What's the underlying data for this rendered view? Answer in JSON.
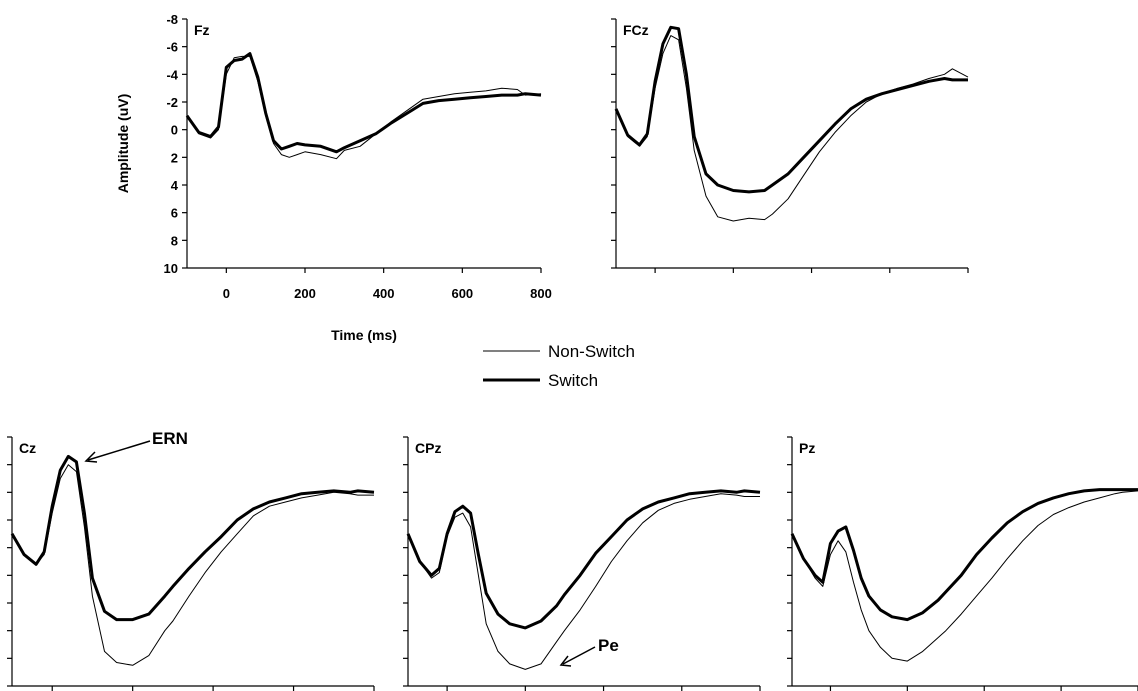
{
  "chart_data": [
    {
      "type": "line",
      "panel": "Fz",
      "xlabel": "Time (ms)",
      "ylabel": "Amplitude (uV)",
      "xlim": [
        -100,
        800
      ],
      "ylim": [
        10,
        -8
      ],
      "y_axis_inverted": true,
      "xticks": [
        0,
        200,
        400,
        600,
        800
      ],
      "yticks": [
        -8,
        -6,
        -4,
        -2,
        0,
        2,
        4,
        6,
        8,
        10
      ],
      "series": [
        {
          "name": "Non-Switch",
          "x": [
            -100,
            -70,
            -40,
            -20,
            0,
            20,
            40,
            60,
            80,
            100,
            120,
            140,
            160,
            180,
            200,
            240,
            280,
            300,
            340,
            380,
            420,
            460,
            500,
            540,
            580,
            620,
            660,
            700,
            740,
            760,
            800
          ],
          "y": [
            -1,
            0.3,
            0.6,
            0,
            -4,
            -5.2,
            -5.3,
            -5.3,
            -3.5,
            -1,
            1,
            1.8,
            2,
            1.8,
            1.6,
            1.8,
            2.1,
            1.5,
            1.2,
            0.3,
            -0.6,
            -1.4,
            -2.2,
            -2.4,
            -2.6,
            -2.7,
            -2.8,
            -3.0,
            -2.9,
            -2.5,
            -2.6
          ]
        },
        {
          "name": "Switch",
          "x": [
            -100,
            -70,
            -40,
            -20,
            0,
            20,
            40,
            60,
            80,
            100,
            120,
            140,
            160,
            180,
            200,
            240,
            280,
            300,
            340,
            380,
            420,
            460,
            500,
            540,
            580,
            620,
            660,
            700,
            740,
            760,
            800
          ],
          "y": [
            -1,
            0.2,
            0.5,
            -0.2,
            -4.5,
            -5,
            -5.1,
            -5.5,
            -3.8,
            -1.2,
            0.8,
            1.4,
            1.2,
            1.0,
            1.1,
            1.2,
            1.6,
            1.3,
            0.8,
            0.3,
            -0.5,
            -1.2,
            -1.9,
            -2.1,
            -2.2,
            -2.3,
            -2.4,
            -2.5,
            -2.5,
            -2.6,
            -2.5
          ]
        }
      ]
    },
    {
      "type": "line",
      "panel": "FCz",
      "xlim": [
        -100,
        800
      ],
      "ylim": [
        10,
        -8
      ],
      "y_axis_inverted": true,
      "series": [
        {
          "name": "Non-Switch",
          "x": [
            -100,
            -70,
            -40,
            -20,
            0,
            20,
            40,
            60,
            80,
            100,
            130,
            160,
            200,
            240,
            280,
            300,
            340,
            380,
            420,
            460,
            500,
            540,
            580,
            620,
            660,
            700,
            740,
            760,
            800
          ],
          "y": [
            -1.5,
            0.5,
            1.2,
            0.5,
            -3,
            -5.5,
            -6.8,
            -6.5,
            -3,
            1.5,
            4.8,
            6.3,
            6.6,
            6.4,
            6.5,
            6.1,
            5,
            3.3,
            1.6,
            0.2,
            -1,
            -2,
            -2.6,
            -3,
            -3.3,
            -3.7,
            -4.0,
            -4.4,
            -3.8
          ]
        },
        {
          "name": "Switch",
          "x": [
            -100,
            -70,
            -40,
            -20,
            0,
            20,
            40,
            60,
            80,
            100,
            130,
            160,
            200,
            240,
            280,
            300,
            340,
            380,
            420,
            460,
            500,
            540,
            580,
            620,
            660,
            700,
            740,
            760,
            800
          ],
          "y": [
            -1.5,
            0.4,
            1.1,
            0.3,
            -3.5,
            -6.2,
            -7.4,
            -7.3,
            -4,
            0.5,
            3.2,
            4.0,
            4.4,
            4.5,
            4.4,
            4.0,
            3.2,
            2.0,
            0.8,
            -0.4,
            -1.5,
            -2.2,
            -2.6,
            -2.9,
            -3.2,
            -3.5,
            -3.7,
            -3.6,
            -3.6
          ]
        }
      ]
    },
    {
      "type": "line",
      "panel": "Cz",
      "series": [
        {
          "name": "Non-Switch",
          "x": [
            -100,
            -70,
            -40,
            -20,
            0,
            20,
            40,
            60,
            80,
            100,
            130,
            160,
            200,
            240,
            280,
            300,
            340,
            380,
            420,
            460,
            500,
            540,
            580,
            620,
            660,
            700,
            740,
            760,
            800
          ],
          "y": [
            -1,
            0.5,
            1.2,
            0.5,
            -2.5,
            -5,
            -6.0,
            -5.5,
            -1.5,
            3.5,
            7.5,
            8.3,
            8.5,
            7.8,
            6.0,
            5.3,
            3.5,
            1.8,
            0.3,
            -1,
            -2.3,
            -3,
            -3.3,
            -3.6,
            -3.8,
            -4.0,
            -3.9,
            -3.8,
            -3.8
          ]
        },
        {
          "name": "Switch",
          "x": [
            -100,
            -70,
            -40,
            -20,
            0,
            20,
            40,
            60,
            80,
            100,
            130,
            160,
            200,
            240,
            280,
            300,
            340,
            380,
            420,
            460,
            500,
            540,
            580,
            620,
            660,
            700,
            740,
            760,
            800
          ],
          "y": [
            -1,
            0.5,
            1.2,
            0.3,
            -3,
            -5.6,
            -6.6,
            -6.2,
            -2.5,
            2.2,
            4.6,
            5.2,
            5.2,
            4.8,
            3.5,
            2.8,
            1.5,
            0.3,
            -0.8,
            -2,
            -2.8,
            -3.3,
            -3.6,
            -3.9,
            -4.0,
            -4.1,
            -4.0,
            -4.1,
            -4.0
          ]
        }
      ]
    },
    {
      "type": "line",
      "panel": "CPz",
      "series": [
        {
          "name": "Non-Switch",
          "x": [
            -100,
            -70,
            -40,
            -20,
            0,
            20,
            40,
            60,
            80,
            100,
            130,
            160,
            200,
            240,
            280,
            300,
            340,
            380,
            420,
            460,
            500,
            540,
            580,
            620,
            660,
            700,
            740,
            760,
            800
          ],
          "y": [
            -1,
            1,
            2.2,
            1.8,
            -0.8,
            -2.2,
            -2.5,
            -1.5,
            2,
            5.5,
            7.5,
            8.4,
            8.8,
            8.4,
            6.8,
            6.0,
            4.5,
            2.8,
            1.0,
            -0.5,
            -1.8,
            -2.7,
            -3.2,
            -3.5,
            -3.7,
            -3.9,
            -3.8,
            -3.7,
            -3.7
          ]
        },
        {
          "name": "Switch",
          "x": [
            -100,
            -70,
            -40,
            -20,
            0,
            20,
            40,
            60,
            80,
            100,
            130,
            160,
            200,
            240,
            280,
            300,
            340,
            380,
            420,
            460,
            500,
            540,
            580,
            620,
            660,
            700,
            740,
            760,
            800
          ],
          "y": [
            -1,
            1,
            2.0,
            1.5,
            -1,
            -2.6,
            -3.0,
            -2.5,
            0.5,
            3.3,
            4.8,
            5.5,
            5.8,
            5.3,
            4.2,
            3.4,
            2,
            0.4,
            -0.8,
            -2,
            -2.8,
            -3.3,
            -3.6,
            -3.9,
            -4.0,
            -4.1,
            -4.0,
            -4.1,
            -4.0
          ]
        }
      ]
    },
    {
      "type": "line",
      "panel": "Pz",
      "series": [
        {
          "name": "Non-Switch",
          "x": [
            -100,
            -70,
            -40,
            -20,
            0,
            20,
            40,
            60,
            80,
            100,
            130,
            160,
            200,
            240,
            280,
            300,
            340,
            380,
            420,
            460,
            500,
            540,
            580,
            620,
            660,
            700,
            740,
            760,
            800
          ],
          "y": [
            -1,
            0.8,
            2.2,
            2.8,
            0.5,
            -0.5,
            0.3,
            2.5,
            4.5,
            6.0,
            7.2,
            8.0,
            8.2,
            7.5,
            6.5,
            6.0,
            4.8,
            3.5,
            2.2,
            0.8,
            -0.5,
            -1.6,
            -2.4,
            -2.9,
            -3.3,
            -3.6,
            -3.9,
            -4.0,
            -4.1
          ]
        },
        {
          "name": "Switch",
          "x": [
            -100,
            -70,
            -40,
            -20,
            0,
            20,
            40,
            60,
            80,
            100,
            130,
            160,
            200,
            240,
            280,
            300,
            340,
            380,
            420,
            460,
            500,
            540,
            580,
            620,
            660,
            700,
            740,
            760,
            800
          ],
          "y": [
            -1,
            0.8,
            2.0,
            2.5,
            -0.3,
            -1.2,
            -1.5,
            0.2,
            2.2,
            3.5,
            4.5,
            5.0,
            5.2,
            4.7,
            3.8,
            3.2,
            2,
            0.5,
            -0.7,
            -1.8,
            -2.6,
            -3.2,
            -3.6,
            -3.9,
            -4.1,
            -4.2,
            -4.2,
            -4.2,
            -4.2
          ]
        }
      ]
    }
  ],
  "legend": {
    "nonswitch": "Non-Switch",
    "switch": "Switch"
  },
  "annotations": {
    "ern": "ERN",
    "pe": "Pe"
  }
}
